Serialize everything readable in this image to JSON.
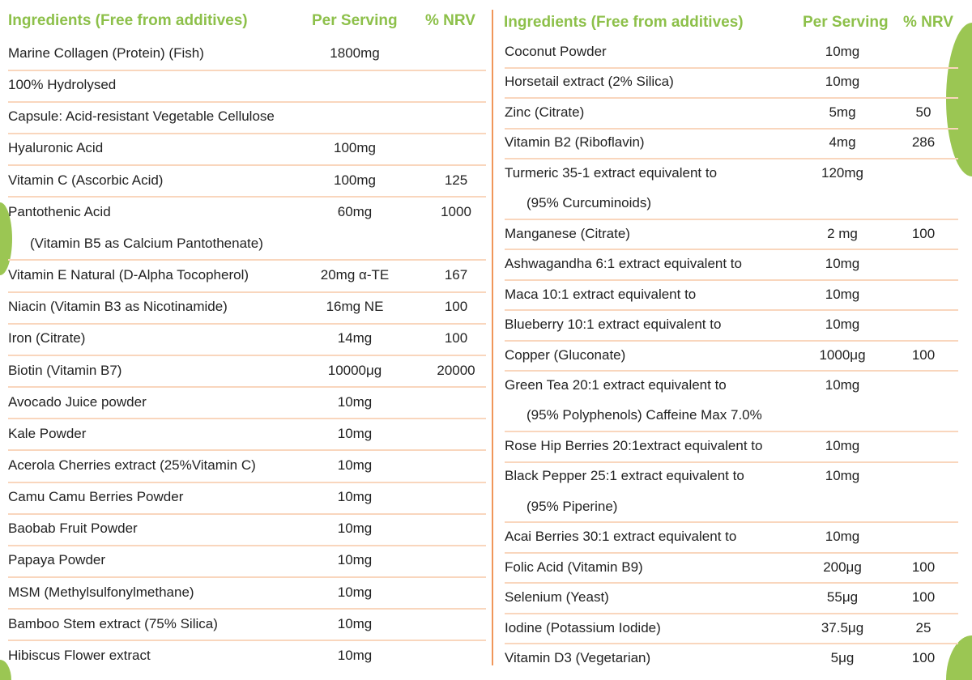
{
  "colors": {
    "heading": "#8dc04a",
    "rule": "#f9d6bd",
    "divider": "#f0965a",
    "accent_circle": "#9bc653"
  },
  "left": {
    "headers": {
      "ingredients": "Ingredients (Free from additives)",
      "per_serving": "Per Serving",
      "nrv": "% NRV"
    },
    "rows": [
      {
        "name": "Marine Collagen (Protein) (Fish)",
        "per": "1800mg",
        "nrv": ""
      },
      {
        "name": "100% Hydrolysed",
        "per": "",
        "nrv": ""
      },
      {
        "name": "Capsule: Acid-resistant Vegetable Cellulose",
        "per": "",
        "nrv": ""
      },
      {
        "name": "Hyaluronic Acid",
        "per": "100mg",
        "nrv": ""
      },
      {
        "name": "Vitamin C (Ascorbic Acid)",
        "per": "100mg",
        "nrv": "125"
      },
      {
        "name": "Pantothenic Acid",
        "per": "60mg",
        "nrv": "1000"
      },
      {
        "name": "(Vitamin B5 as Calcium Pantothenate)",
        "per": "",
        "nrv": "",
        "cont": true
      },
      {
        "name": "Vitamin E Natural (D-Alpha Tocopherol)",
        "per": "20mg α-TE",
        "nrv": "167"
      },
      {
        "name": "Niacin (Vitamin B3 as Nicotinamide)",
        "per": "16mg NE",
        "nrv": "100"
      },
      {
        "name": "Iron (Citrate)",
        "per": "14mg",
        "nrv": "100"
      },
      {
        "name": "Biotin (Vitamin B7)",
        "per": "10000μg",
        "nrv": "20000"
      },
      {
        "name": "Avocado Juice powder",
        "per": "10mg",
        "nrv": ""
      },
      {
        "name": "Kale Powder",
        "per": "10mg",
        "nrv": ""
      },
      {
        "name": "Acerola Cherries extract (25%Vitamin C)",
        "per": "10mg",
        "nrv": ""
      },
      {
        "name": "Camu Camu Berries Powder",
        "per": "10mg",
        "nrv": ""
      },
      {
        "name": "Baobab Fruit Powder",
        "per": "10mg",
        "nrv": ""
      },
      {
        "name": "Papaya Powder",
        "per": "10mg",
        "nrv": ""
      },
      {
        "name": "MSM (Methylsulfonylmethane)",
        "per": "10mg",
        "nrv": ""
      },
      {
        "name": "Bamboo Stem extract (75% Silica)",
        "per": "10mg",
        "nrv": ""
      },
      {
        "name": "Hibiscus Flower extract",
        "per": "10mg",
        "nrv": ""
      }
    ]
  },
  "right": {
    "headers": {
      "ingredients": "Ingredients (Free from additives)",
      "per_serving": "Per Serving",
      "nrv": "% NRV"
    },
    "rows": [
      {
        "name": "Coconut Powder",
        "per": "10mg",
        "nrv": ""
      },
      {
        "name": "Horsetail extract (2% Silica)",
        "per": "10mg",
        "nrv": ""
      },
      {
        "name": "Zinc (Citrate)",
        "per": "5mg",
        "nrv": "50"
      },
      {
        "name": "Vitamin B2 (Riboflavin)",
        "per": "4mg",
        "nrv": "286"
      },
      {
        "name": "Turmeric 35-1 extract equivalent to",
        "per": "120mg",
        "nrv": ""
      },
      {
        "name": "(95% Curcuminoids)",
        "per": "",
        "nrv": "",
        "cont": true
      },
      {
        "name": "Manganese (Citrate)",
        "per": "2 mg",
        "nrv": "100"
      },
      {
        "name": "Ashwagandha 6:1 extract equivalent to",
        "per": "10mg",
        "nrv": ""
      },
      {
        "name": "Maca 10:1 extract equivalent to",
        "per": "10mg",
        "nrv": ""
      },
      {
        "name": "Blueberry 10:1 extract equivalent to",
        "per": "10mg",
        "nrv": ""
      },
      {
        "name": "Copper (Gluconate)",
        "per": "1000μg",
        "nrv": "100"
      },
      {
        "name": "Green Tea 20:1 extract equivalent to",
        "per": "10mg",
        "nrv": ""
      },
      {
        "name": "(95% Polyphenols) Caffeine Max 7.0%",
        "per": "",
        "nrv": "",
        "cont": true
      },
      {
        "name": "Rose Hip Berries 20:1extract equivalent to",
        "per": "10mg",
        "nrv": ""
      },
      {
        "name": "Black Pepper 25:1 extract equivalent to",
        "per": "10mg",
        "nrv": ""
      },
      {
        "name": "(95% Piperine)",
        "per": "",
        "nrv": "",
        "cont": true
      },
      {
        "name": "Acai Berries 30:1 extract equivalent to",
        "per": "10mg",
        "nrv": ""
      },
      {
        "name": "Folic Acid (Vitamin B9)",
        "per": "200μg",
        "nrv": "100"
      },
      {
        "name": "Selenium (Yeast)",
        "per": "55μg",
        "nrv": "100"
      },
      {
        "name": "Iodine (Potassium Iodide)",
        "per": "37.5μg",
        "nrv": "25"
      },
      {
        "name": "Vitamin D3 (Vegetarian)",
        "per": "5μg",
        "nrv": "100"
      }
    ]
  }
}
